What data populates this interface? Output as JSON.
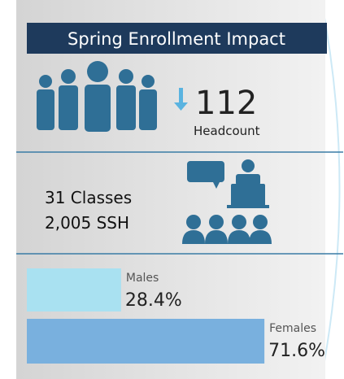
{
  "title": "Spring Enrollment Impact",
  "headcount": {
    "value": 112,
    "label": "Headcount"
  },
  "classes": {
    "lines": [
      "31 Classes",
      "2,005 SSH"
    ]
  },
  "gender": {
    "scale_max": 100,
    "groups": [
      {
        "name": "Males",
        "value": 28.4,
        "value_label": "28.4%",
        "color": "#a9e1f1"
      },
      {
        "name": "Females",
        "value": 71.6,
        "value_label": "71.6%",
        "color": "#79b0de"
      }
    ]
  }
}
